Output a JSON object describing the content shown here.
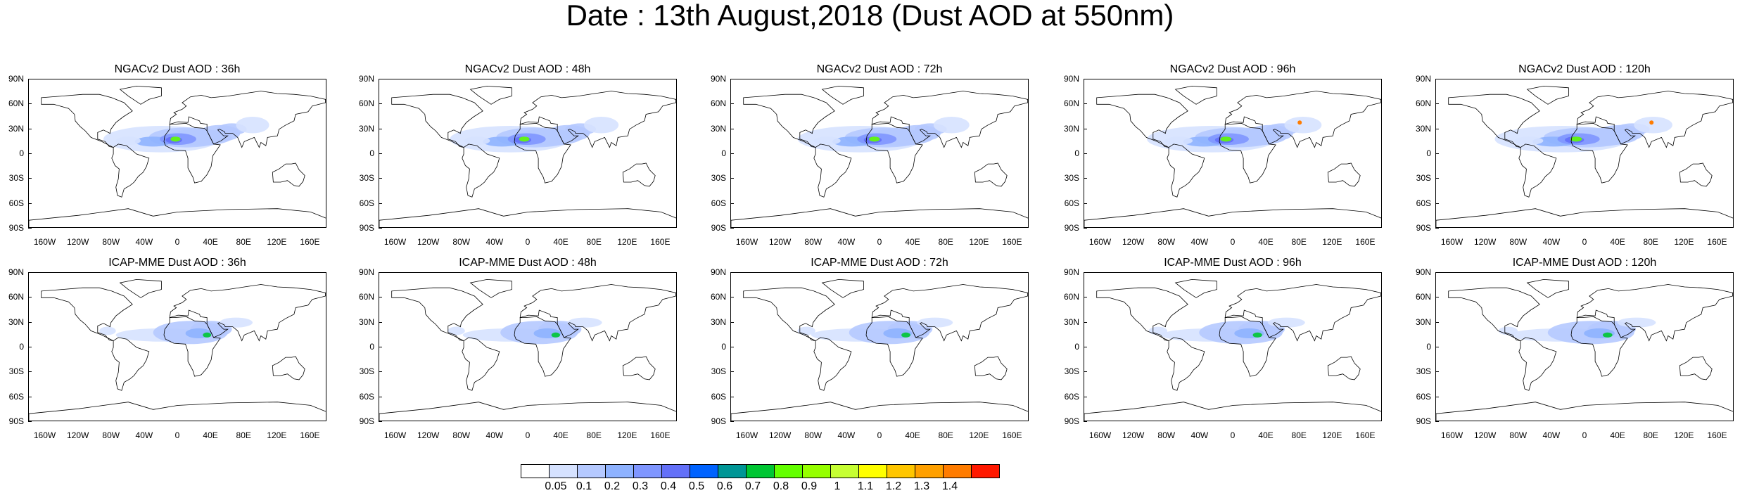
{
  "title": "Date : 13th August,2018 (Dust AOD at 550nm)",
  "panels": [
    {
      "title": "NGACv2 Dust AOD : 36h",
      "model": "NGACv2",
      "lead": "36h"
    },
    {
      "title": "NGACv2 Dust AOD : 48h",
      "model": "NGACv2",
      "lead": "48h"
    },
    {
      "title": "NGACv2 Dust AOD : 72h",
      "model": "NGACv2",
      "lead": "72h"
    },
    {
      "title": "NGACv2 Dust AOD : 96h",
      "model": "NGACv2",
      "lead": "96h"
    },
    {
      "title": "NGACv2 Dust AOD : 120h",
      "model": "NGACv2",
      "lead": "120h"
    },
    {
      "title": "ICAP-MME Dust AOD : 36h",
      "model": "ICAP-MME",
      "lead": "36h"
    },
    {
      "title": "ICAP-MME Dust AOD : 48h",
      "model": "ICAP-MME",
      "lead": "48h"
    },
    {
      "title": "ICAP-MME Dust AOD : 72h",
      "model": "ICAP-MME",
      "lead": "72h"
    },
    {
      "title": "ICAP-MME Dust AOD : 96h",
      "model": "ICAP-MME",
      "lead": "96h"
    },
    {
      "title": "ICAP-MME Dust AOD : 120h",
      "model": "ICAP-MME",
      "lead": "120h"
    }
  ],
  "lat_ticks": [
    "90N",
    "60N",
    "30N",
    "0",
    "30S",
    "60S",
    "90S"
  ],
  "lon_ticks": [
    "160W",
    "120W",
    "80W",
    "40W",
    "0",
    "40E",
    "80E",
    "120E",
    "160E"
  ],
  "colorbar": {
    "labels": [
      "0.05",
      "0.1",
      "0.2",
      "0.3",
      "0.4",
      "0.5",
      "0.6",
      "0.7",
      "0.8",
      "0.9",
      "1",
      "1.1",
      "1.2",
      "1.3",
      "1.4"
    ],
    "colors": [
      "#ffffff",
      "#d6e2ff",
      "#b5c9ff",
      "#8eb2ff",
      "#7f96ff",
      "#6370f8",
      "#0063ff",
      "#009696",
      "#00c633",
      "#63ff00",
      "#96ff00",
      "#c6ff33",
      "#ffff00",
      "#ffc600",
      "#ffa000",
      "#ff7c00",
      "#ff1900"
    ]
  }
}
